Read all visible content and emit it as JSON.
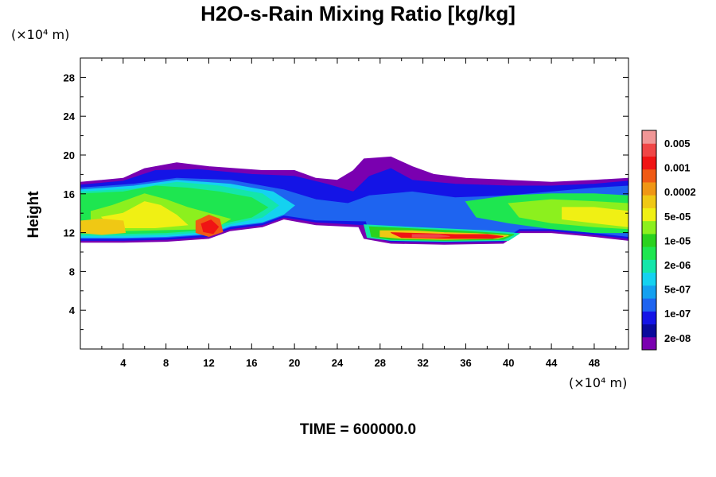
{
  "chart_data": {
    "type": "heatmap",
    "title": "H2O-s-Rain Mixing Ratio [kg/kg]",
    "ylabel": "Height",
    "xlabel": "",
    "x_unit_label": "(×10⁴ m)",
    "y_unit_label": "(×10⁴ m)",
    "footer": "TIME = 600000.0",
    "xlim": [
      0,
      51.2
    ],
    "ylim": [
      0,
      30
    ],
    "x_ticks": [
      4,
      8,
      12,
      16,
      20,
      24,
      28,
      32,
      36,
      40,
      44,
      48
    ],
    "x_tick_labels": [
      "4",
      "8",
      "12",
      "16",
      "20",
      "24",
      "28",
      "32",
      "36",
      "40",
      "44",
      "48"
    ],
    "y_ticks": [
      4,
      8,
      12,
      16,
      20,
      24,
      28
    ],
    "y_tick_labels": [
      "4",
      "8",
      "12",
      "16",
      "20",
      "24",
      "28"
    ],
    "colorbar": {
      "labels": [
        "0.005",
        "0.001",
        "0.0002",
        "5e-05",
        "1e-05",
        "2e-06",
        "5e-07",
        "1e-07",
        "2e-08"
      ],
      "colors": [
        "#7a00b0",
        "#0a0a9c",
        "#1414e6",
        "#1e64f0",
        "#14a0f0",
        "#14d2f0",
        "#14e6aa",
        "#1ee650",
        "#2ad21e",
        "#8cf01e",
        "#f0f014",
        "#f0c814",
        "#f09614",
        "#f05a14",
        "#f01414",
        "#f04646",
        "#f09696"
      ]
    },
    "layers": [
      {
        "level": 0,
        "color": "#7a00b0",
        "polygon": [
          [
            0,
            17.2
          ],
          [
            4,
            17.6
          ],
          [
            6,
            18.6
          ],
          [
            9,
            19.2
          ],
          [
            12,
            18.8
          ],
          [
            17,
            18.4
          ],
          [
            20,
            18.4
          ],
          [
            22,
            17.6
          ],
          [
            24,
            17.4
          ],
          [
            25.5,
            18.4
          ],
          [
            26.5,
            19.6
          ],
          [
            29,
            19.8
          ],
          [
            31,
            18.8
          ],
          [
            33,
            18.0
          ],
          [
            36,
            17.6
          ],
          [
            40,
            17.4
          ],
          [
            44,
            17.2
          ],
          [
            48,
            17.4
          ],
          [
            51.2,
            17.6
          ],
          [
            51.2,
            11.2
          ],
          [
            48,
            11.6
          ],
          [
            44,
            12.0
          ],
          [
            41,
            12.0
          ],
          [
            39.5,
            10.9
          ],
          [
            34,
            10.8
          ],
          [
            29,
            10.9
          ],
          [
            26.5,
            11.4
          ],
          [
            26,
            12.6
          ],
          [
            22,
            12.8
          ],
          [
            19,
            13.4
          ],
          [
            17,
            12.6
          ],
          [
            14,
            12.2
          ],
          [
            12,
            11.4
          ],
          [
            8,
            11.1
          ],
          [
            4,
            11.0
          ],
          [
            0,
            11.0
          ]
        ]
      },
      {
        "level": 2,
        "color": "#1414e6",
        "polygon": [
          [
            0,
            16.9
          ],
          [
            4,
            17.3
          ],
          [
            7,
            18.4
          ],
          [
            11,
            18.5
          ],
          [
            16,
            18.0
          ],
          [
            20,
            17.8
          ],
          [
            23,
            17.0
          ],
          [
            25.5,
            16.2
          ],
          [
            27,
            17.8
          ],
          [
            29,
            18.6
          ],
          [
            31,
            17.4
          ],
          [
            35,
            17.0
          ],
          [
            40,
            16.8
          ],
          [
            44,
            16.8
          ],
          [
            48,
            17.0
          ],
          [
            51.2,
            17.3
          ],
          [
            51.2,
            11.4
          ],
          [
            48,
            11.8
          ],
          [
            44,
            12.2
          ],
          [
            41,
            12.2
          ],
          [
            39.5,
            11.1
          ],
          [
            34,
            11.0
          ],
          [
            29,
            11.1
          ],
          [
            27,
            11.6
          ],
          [
            26.5,
            12.8
          ],
          [
            22,
            13.1
          ],
          [
            19,
            13.6
          ],
          [
            17,
            12.8
          ],
          [
            14,
            12.4
          ],
          [
            12,
            11.6
          ],
          [
            8,
            11.3
          ],
          [
            4,
            11.2
          ],
          [
            0,
            11.2
          ]
        ]
      },
      {
        "level": 3,
        "color": "#1e64f0",
        "polygon": [
          [
            0,
            16.6
          ],
          [
            5,
            17.0
          ],
          [
            9,
            17.6
          ],
          [
            14,
            17.4
          ],
          [
            19,
            16.4
          ],
          [
            22,
            15.4
          ],
          [
            25,
            15.0
          ],
          [
            27,
            15.8
          ],
          [
            31,
            16.2
          ],
          [
            35,
            15.6
          ],
          [
            40,
            15.8
          ],
          [
            44,
            16.2
          ],
          [
            48,
            16.6
          ],
          [
            51.2,
            16.8
          ],
          [
            51.2,
            11.6
          ],
          [
            48,
            12.0
          ],
          [
            44,
            12.4
          ],
          [
            41,
            12.4
          ],
          [
            39.5,
            11.3
          ],
          [
            34,
            11.2
          ],
          [
            29,
            11.3
          ],
          [
            27,
            11.8
          ],
          [
            26.7,
            13.2
          ],
          [
            22,
            13.3
          ],
          [
            19,
            13.8
          ],
          [
            17,
            13.0
          ],
          [
            14,
            12.6
          ],
          [
            12,
            11.8
          ],
          [
            8,
            11.5
          ],
          [
            4,
            11.4
          ],
          [
            0,
            11.4
          ]
        ]
      },
      {
        "level": 5,
        "color": "#14d2f0",
        "polygon": [
          [
            0,
            16.4
          ],
          [
            5,
            16.8
          ],
          [
            9,
            17.4
          ],
          [
            14,
            17.0
          ],
          [
            18,
            16.2
          ],
          [
            20,
            14.8
          ],
          [
            19,
            13.9
          ],
          [
            17,
            13.1
          ],
          [
            14,
            12.7
          ],
          [
            12,
            11.9
          ],
          [
            8,
            11.6
          ],
          [
            4,
            11.5
          ],
          [
            0,
            11.5
          ]
        ]
      },
      {
        "level": 6,
        "color": "#14e6aa",
        "polygon": [
          [
            0,
            16.2
          ],
          [
            5,
            16.5
          ],
          [
            9,
            17.2
          ],
          [
            13,
            16.8
          ],
          [
            17,
            16.0
          ],
          [
            18.5,
            14.8
          ],
          [
            17,
            13.6
          ],
          [
            14,
            12.9
          ],
          [
            12,
            12.1
          ],
          [
            8,
            11.8
          ],
          [
            4,
            11.7
          ],
          [
            0,
            11.7
          ]
        ]
      },
      {
        "level": 7,
        "color": "#1ee650",
        "polygon": [
          [
            0,
            16.0
          ],
          [
            4,
            16.2
          ],
          [
            7,
            16.8
          ],
          [
            10,
            16.6
          ],
          [
            13,
            16.2
          ],
          [
            16,
            15.6
          ],
          [
            17.5,
            14.6
          ],
          [
            16,
            13.6
          ],
          [
            13.5,
            13.0
          ],
          [
            12,
            12.3
          ],
          [
            8,
            12.0
          ],
          [
            4,
            11.9
          ],
          [
            0,
            11.9
          ]
        ]
      },
      {
        "level": 9,
        "color": "#8cf01e",
        "polygon": [
          [
            1,
            14.2
          ],
          [
            3,
            14.8
          ],
          [
            6,
            16.0
          ],
          [
            8,
            15.4
          ],
          [
            10,
            14.6
          ],
          [
            12,
            14.0
          ],
          [
            14,
            13.4
          ],
          [
            12.5,
            12.4
          ],
          [
            8,
            12.3
          ],
          [
            4,
            12.2
          ],
          [
            1,
            12.4
          ]
        ]
      },
      {
        "level": 10,
        "color": "#f0f014",
        "polygon": [
          [
            2,
            13.6
          ],
          [
            4,
            14.0
          ],
          [
            6,
            15.2
          ],
          [
            7.5,
            14.8
          ],
          [
            9,
            13.8
          ],
          [
            10,
            12.8
          ],
          [
            7,
            12.5
          ],
          [
            3,
            12.5
          ]
        ]
      },
      {
        "level": 11,
        "color": "#f0c814",
        "polygon": [
          [
            0,
            13.2
          ],
          [
            2,
            13.4
          ],
          [
            4,
            13.2
          ],
          [
            4.2,
            12.0
          ],
          [
            2,
            11.8
          ],
          [
            0,
            12.0
          ]
        ]
      },
      {
        "level": 13,
        "color": "#f05a14",
        "polygon": [
          [
            10.8,
            13.2
          ],
          [
            12,
            13.8
          ],
          [
            13,
            13.4
          ],
          [
            13.3,
            12.1
          ],
          [
            12,
            11.6
          ],
          [
            10.8,
            12.0
          ]
        ]
      },
      {
        "level": 14,
        "color": "#f01414",
        "polygon": [
          [
            11.3,
            12.9
          ],
          [
            12.2,
            13.3
          ],
          [
            12.9,
            12.6
          ],
          [
            12.4,
            11.9
          ],
          [
            11.5,
            12.1
          ]
        ]
      },
      {
        "level": 7,
        "color": "#1ee650",
        "polygon": [
          [
            36,
            15.2
          ],
          [
            40,
            15.8
          ],
          [
            44,
            16.0
          ],
          [
            48,
            16.0
          ],
          [
            51.2,
            15.8
          ],
          [
            51.2,
            12.0
          ],
          [
            48,
            12.0
          ],
          [
            44,
            12.4
          ],
          [
            40,
            13.0
          ],
          [
            37,
            13.6
          ]
        ]
      },
      {
        "level": 9,
        "color": "#8cf01e",
        "polygon": [
          [
            40,
            15.0
          ],
          [
            44,
            15.4
          ],
          [
            48,
            15.2
          ],
          [
            51.2,
            15.0
          ],
          [
            51.2,
            12.4
          ],
          [
            48,
            12.6
          ],
          [
            44,
            13.0
          ],
          [
            41,
            13.6
          ]
        ]
      },
      {
        "level": 10,
        "color": "#f0f014",
        "polygon": [
          [
            45,
            14.6
          ],
          [
            48,
            14.6
          ],
          [
            51.2,
            14.2
          ],
          [
            51.2,
            12.6
          ],
          [
            48,
            13.0
          ],
          [
            45,
            13.4
          ]
        ]
      },
      {
        "level": 6,
        "color": "#14e6aa",
        "polygon": [
          [
            26.5,
            12.8
          ],
          [
            30,
            12.6
          ],
          [
            34,
            12.4
          ],
          [
            38,
            12.2
          ],
          [
            41,
            11.9
          ],
          [
            40,
            11.2
          ],
          [
            34,
            11.1
          ],
          [
            29,
            11.2
          ],
          [
            26.8,
            11.5
          ]
        ]
      },
      {
        "level": 8,
        "color": "#2ad21e",
        "polygon": [
          [
            27,
            12.6
          ],
          [
            31,
            12.4
          ],
          [
            35,
            12.2
          ],
          [
            38,
            12.0
          ],
          [
            40.5,
            11.8
          ],
          [
            39.5,
            11.3
          ],
          [
            34,
            11.2
          ],
          [
            29,
            11.3
          ],
          [
            27.2,
            11.6
          ]
        ]
      },
      {
        "level": 11,
        "color": "#f0c814",
        "polygon": [
          [
            28,
            12.2
          ],
          [
            31,
            12.2
          ],
          [
            34,
            12.0
          ],
          [
            37,
            11.9
          ],
          [
            40,
            11.7
          ],
          [
            39,
            11.4
          ],
          [
            34,
            11.3
          ],
          [
            30,
            11.4
          ],
          [
            28,
            11.6
          ]
        ]
      },
      {
        "level": 14,
        "color": "#f01414",
        "polygon": [
          [
            29,
            12.0
          ],
          [
            32,
            11.9
          ],
          [
            35,
            11.8
          ],
          [
            38,
            11.8
          ],
          [
            39.5,
            11.6
          ],
          [
            38.5,
            11.4
          ],
          [
            34,
            11.4
          ],
          [
            30,
            11.5
          ]
        ]
      },
      {
        "level": 15,
        "color": "#f04646",
        "polygon": [
          [
            31,
            11.8
          ],
          [
            33.5,
            11.8
          ],
          [
            34.5,
            11.6
          ],
          [
            33,
            11.5
          ],
          [
            31,
            11.55
          ]
        ]
      }
    ]
  }
}
